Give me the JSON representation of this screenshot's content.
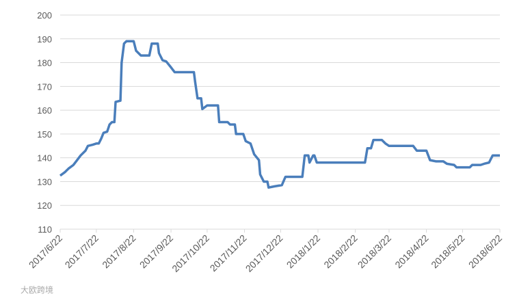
{
  "chart_data": {
    "type": "line",
    "x": [
      "2017-06-22",
      "2017-06-26",
      "2017-06-29",
      "2017-07-03",
      "2017-07-06",
      "2017-07-09",
      "2017-07-13",
      "2017-07-15",
      "2017-07-19",
      "2017-07-22",
      "2017-07-24",
      "2017-07-26",
      "2017-07-28",
      "2017-07-31",
      "2017-08-02",
      "2017-08-04",
      "2017-08-06",
      "2017-08-07",
      "2017-08-11",
      "2017-08-12",
      "2017-08-14",
      "2017-08-16",
      "2017-08-22",
      "2017-08-24",
      "2017-08-28",
      "2017-09-04",
      "2017-09-06",
      "2017-09-11",
      "2017-09-12",
      "2017-09-15",
      "2017-09-18",
      "2017-09-22",
      "2017-09-25",
      "2017-10-11",
      "2017-10-12",
      "2017-10-14",
      "2017-10-17",
      "2017-10-18",
      "2017-10-22",
      "2017-10-31",
      "2017-11-01",
      "2017-11-08",
      "2017-11-10",
      "2017-11-14",
      "2017-11-15",
      "2017-11-21",
      "2017-11-23",
      "2017-11-27",
      "2017-11-30",
      "2017-12-04",
      "2017-12-05",
      "2017-12-08",
      "2017-12-11",
      "2017-12-12",
      "2017-12-17",
      "2017-12-23",
      "2017-12-26",
      "2018-01-09",
      "2018-01-11",
      "2018-01-14",
      "2018-01-15",
      "2018-01-18",
      "2018-01-19",
      "2018-01-21",
      "2018-03-02",
      "2018-03-04",
      "2018-03-07",
      "2018-03-09",
      "2018-03-16",
      "2018-03-19",
      "2018-03-22",
      "2018-04-11",
      "2018-04-14",
      "2018-04-22",
      "2018-04-25",
      "2018-04-30",
      "2018-05-06",
      "2018-05-09",
      "2018-05-15",
      "2018-05-17",
      "2018-05-28",
      "2018-05-30",
      "2018-06-06",
      "2018-06-09",
      "2018-06-13",
      "2018-06-16",
      "2018-06-22"
    ],
    "series": [
      {
        "color": "#4a7ebb",
        "values": [
          132.5,
          134,
          135.5,
          137,
          139,
          141,
          143,
          145,
          145.5,
          146,
          146,
          148,
          150.5,
          151,
          154,
          155,
          155,
          163.5,
          164,
          180,
          188,
          189,
          189,
          185,
          183,
          183,
          188,
          188,
          184,
          181,
          180.5,
          178,
          176,
          176,
          172,
          165,
          165,
          160.5,
          162,
          162,
          155,
          155,
          154,
          154,
          150,
          150,
          147,
          146,
          141.5,
          139,
          133,
          130,
          130,
          127.5,
          128,
          128.5,
          132,
          132,
          141,
          141,
          138,
          141,
          141,
          138,
          138,
          144,
          144,
          147.5,
          147.5,
          146,
          145,
          145,
          143,
          143,
          139,
          138.5,
          138.5,
          137.5,
          137,
          136,
          136,
          137,
          137,
          137.5,
          138,
          141,
          141
        ]
      }
    ],
    "xlim": [
      "2017-06-22",
      "2018-06-22"
    ],
    "xticks": [
      {
        "value": "2017-06-22",
        "label": "2017/6/22"
      },
      {
        "value": "2017-07-22",
        "label": "2017/7/22"
      },
      {
        "value": "2017-08-22",
        "label": "2017/8/22"
      },
      {
        "value": "2017-09-22",
        "label": "2017/9/22"
      },
      {
        "value": "2017-10-22",
        "label": "2017/10/22"
      },
      {
        "value": "2017-11-22",
        "label": "2017/11/22"
      },
      {
        "value": "2017-12-22",
        "label": "2017/12/22"
      },
      {
        "value": "2018-01-22",
        "label": "2018/1/22"
      },
      {
        "value": "2018-02-22",
        "label": "2018/2/22"
      },
      {
        "value": "2018-03-22",
        "label": "2018/3/22"
      },
      {
        "value": "2018-04-22",
        "label": "2018/4/22"
      },
      {
        "value": "2018-05-22",
        "label": "2018/5/22"
      },
      {
        "value": "2018-06-22",
        "label": "2018/6/22"
      }
    ],
    "ylim": [
      110,
      200
    ],
    "yticks": [
      110,
      120,
      130,
      140,
      150,
      160,
      170,
      180,
      190,
      200
    ],
    "grid": true,
    "watermark": "大欧跨境"
  }
}
